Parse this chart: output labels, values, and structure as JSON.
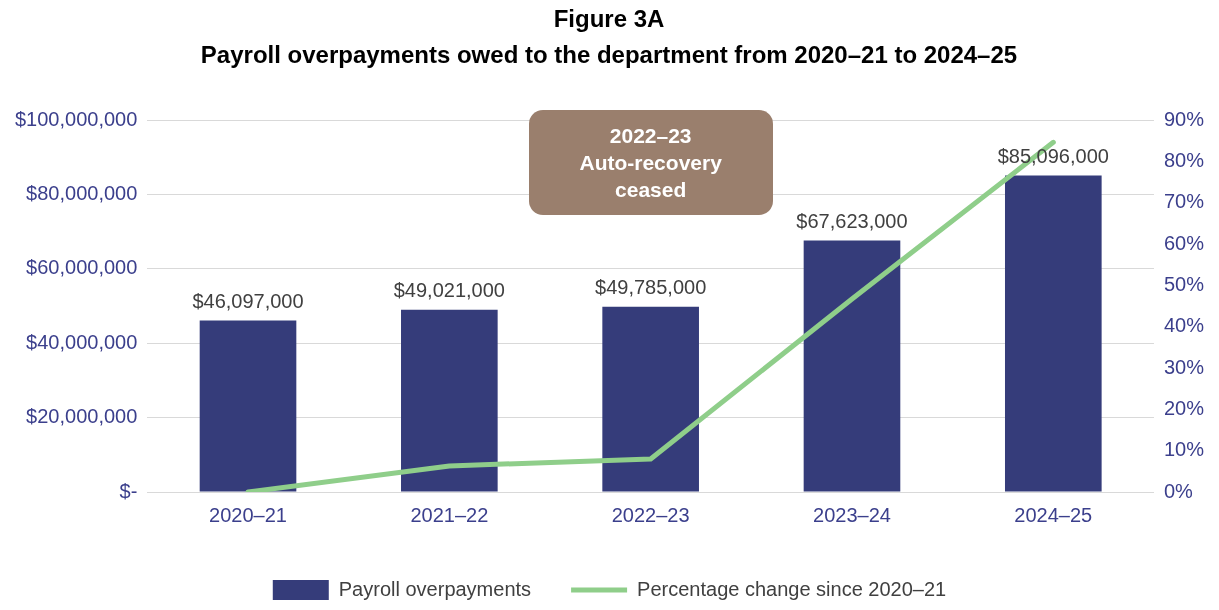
{
  "chart_data": {
    "type": "bar",
    "title": "Figure 3A",
    "subtitle": "Payroll overpayments owed to the department from 2020–21 to 2024–25",
    "categories": [
      "2020–21",
      "2021–22",
      "2022–23",
      "2023–24",
      "2024–25"
    ],
    "series": [
      {
        "name": "Payroll overpayments",
        "color": "#353c7a",
        "values": [
          46097000,
          49021000,
          49785000,
          67623000,
          85096000
        ],
        "value_labels": [
          "$46,097,000",
          "$49,021,000",
          "$49,785,000",
          "$67,623,000",
          "$85,096,000"
        ]
      },
      {
        "name": "Percentage change since 2020–21",
        "type": "line",
        "axis": "y2",
        "color": "#8fce8a",
        "values": [
          0,
          6.3,
          8,
          46.7,
          84.6
        ]
      }
    ],
    "ylim": [
      0,
      100000000
    ],
    "yticks": [
      {
        "value": 0,
        "label": "$-"
      },
      {
        "value": 20000000,
        "label": "$20,000,000"
      },
      {
        "value": 40000000,
        "label": "$40,000,000"
      },
      {
        "value": 60000000,
        "label": "$60,000,000"
      },
      {
        "value": 80000000,
        "label": "$80,000,000"
      },
      {
        "value": 100000000,
        "label": "$100,000,000"
      }
    ],
    "y2lim": [
      0,
      90
    ],
    "y2ticks": [
      {
        "value": 0,
        "label": "0%"
      },
      {
        "value": 10,
        "label": "10%"
      },
      {
        "value": 20,
        "label": "20%"
      },
      {
        "value": 30,
        "label": "30%"
      },
      {
        "value": 40,
        "label": "40%"
      },
      {
        "value": 50,
        "label": "50%"
      },
      {
        "value": 60,
        "label": "60%"
      },
      {
        "value": 70,
        "label": "70%"
      },
      {
        "value": 80,
        "label": "80%"
      },
      {
        "value": 90,
        "label": "90%"
      }
    ],
    "annotations": [
      "2022–23\nAuto-recovery\nceased"
    ],
    "grid": "y",
    "legend": "bottom",
    "marker": "none",
    "line_style": "solid"
  }
}
